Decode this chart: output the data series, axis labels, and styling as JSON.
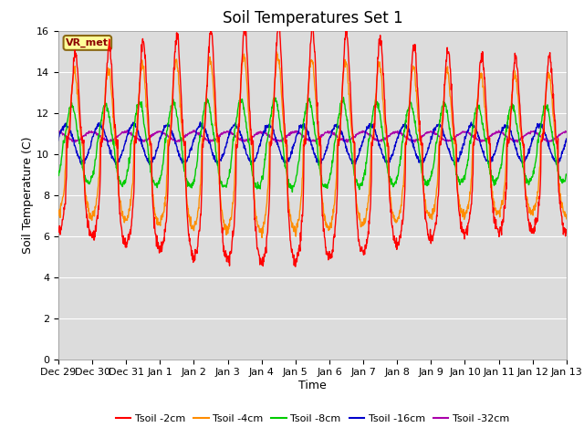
{
  "title": "Soil Temperatures Set 1",
  "xlabel": "Time",
  "ylabel": "Soil Temperature (C)",
  "ylim": [
    0,
    16
  ],
  "yticks": [
    0,
    2,
    4,
    6,
    8,
    10,
    12,
    14,
    16
  ],
  "xtick_labels": [
    "Dec 29",
    "Dec 30",
    "Dec 31",
    "Jan 1",
    "Jan 2",
    "Jan 3",
    "Jan 4",
    "Jan 5",
    "Jan 6",
    "Jan 7",
    "Jan 8",
    "Jan 9",
    "Jan 10",
    "Jan 11",
    "Jan 12",
    "Jan 13"
  ],
  "colors": {
    "Tsoil -2cm": "#ff0000",
    "Tsoil -4cm": "#ff8c00",
    "Tsoil -8cm": "#00cc00",
    "Tsoil -16cm": "#0000cc",
    "Tsoil -32cm": "#aa00aa"
  },
  "legend_labels": [
    "Tsoil -2cm",
    "Tsoil -4cm",
    "Tsoil -8cm",
    "Tsoil -16cm",
    "Tsoil -32cm"
  ],
  "vr_met_label": "VR_met",
  "plot_bg_color": "#dcdcdc",
  "fig_bg_color": "#ffffff",
  "title_fontsize": 12,
  "axis_label_fontsize": 9,
  "tick_fontsize": 8,
  "grid_color": "#ffffff",
  "n_days": 15,
  "base_temp": 10.5
}
